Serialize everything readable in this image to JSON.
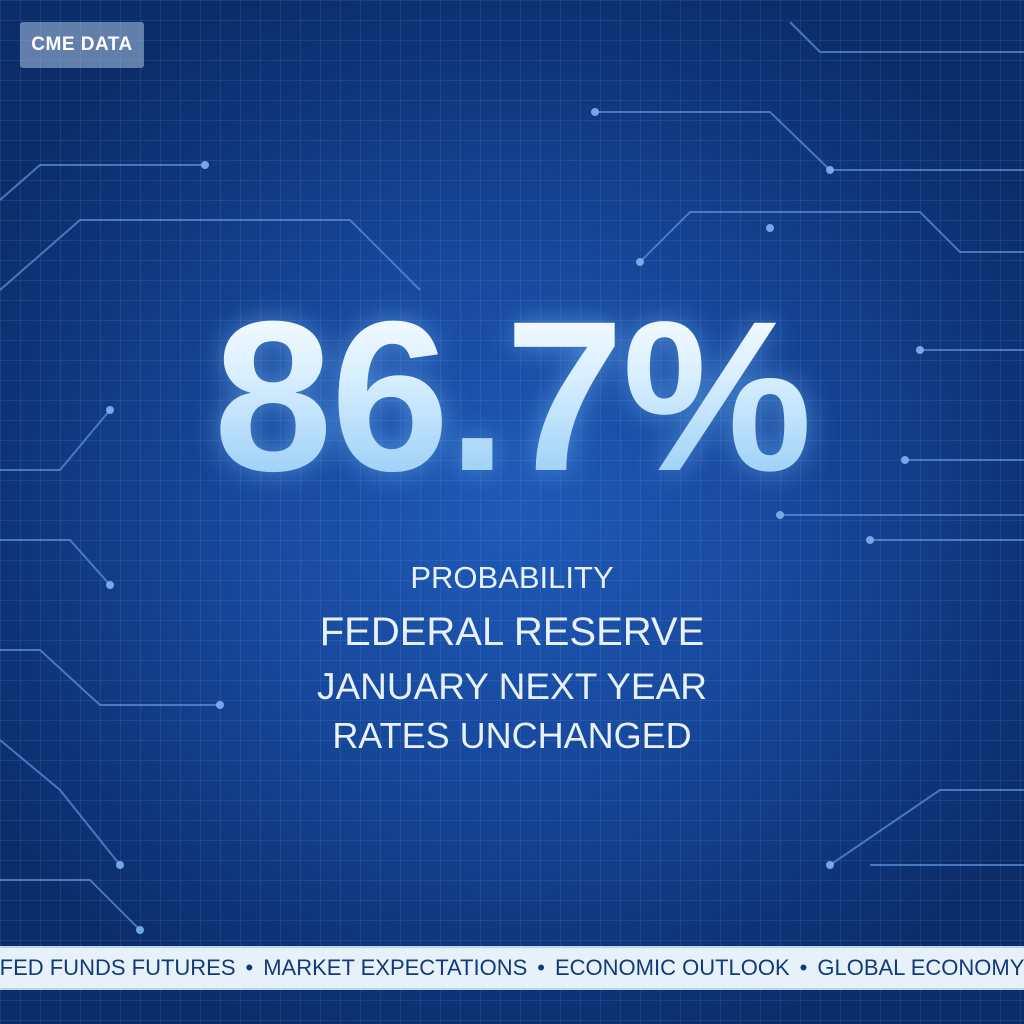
{
  "badge": {
    "text": "CME DATA"
  },
  "headline": {
    "value": "86.7%"
  },
  "caption": {
    "line1": "PROBABILITY",
    "line2": "FEDERAL RESERVE",
    "line3": "JANUARY NEXT YEAR",
    "line4": "RATES UNCHANGED"
  },
  "ticker": {
    "items": [
      "FED FUNDS FUTURES",
      "MARKET EXPECTATIONS",
      "ECONOMIC OUTLOOK",
      "GLOBAL ECONOMY"
    ],
    "separator": "•"
  },
  "colors": {
    "background": "#17489c",
    "headline": "#d2ecff",
    "ticker_bg": "#e6f1fa",
    "ticker_text": "#123a7a"
  }
}
